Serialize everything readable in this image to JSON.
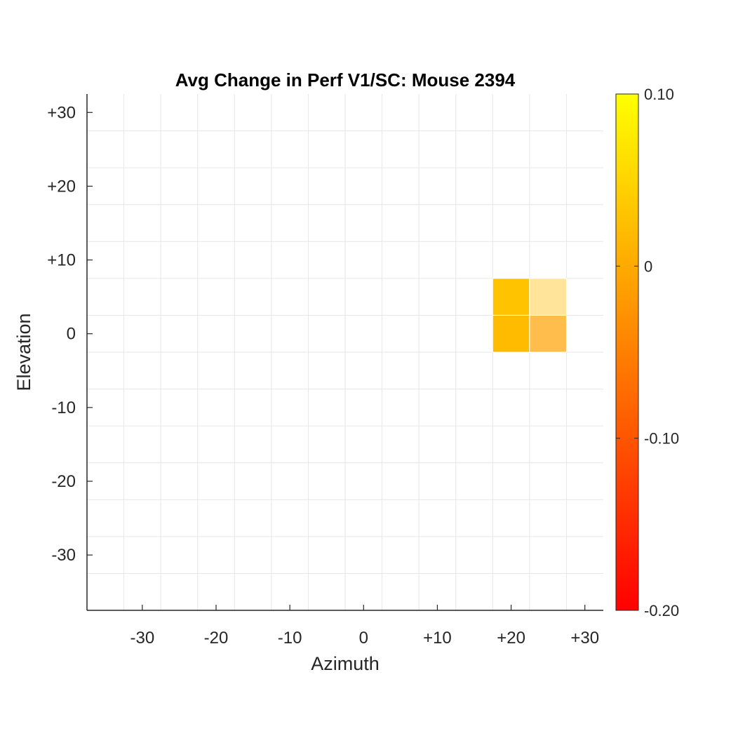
{
  "chart_data": {
    "type": "heatmap",
    "title": "Avg Change in Perf V1/SC: Mouse 2394",
    "xlabel": "Azimuth",
    "ylabel": "Elevation",
    "xlim": [
      -37.5,
      32.5
    ],
    "ylim": [
      -37.5,
      32.5
    ],
    "x_ticks": [
      -30,
      -20,
      -10,
      0,
      10,
      20,
      30
    ],
    "x_tick_labels": [
      "-30",
      "-20",
      "-10",
      "0",
      "+10",
      "+20",
      "+30"
    ],
    "y_ticks": [
      30,
      20,
      10,
      0,
      -10,
      -20,
      -30
    ],
    "y_tick_labels": [
      "+30",
      "+20",
      "+10",
      "0",
      "-10",
      "-20",
      "-30"
    ],
    "cell_size": 5,
    "grid": true,
    "cells": [
      {
        "azimuth": 20,
        "elevation": 5,
        "value": 0.03
      },
      {
        "azimuth": 25,
        "elevation": 5,
        "value": 0.02,
        "alpha": 0.4
      },
      {
        "azimuth": 20,
        "elevation": 0,
        "value": 0.02
      },
      {
        "azimuth": 25,
        "elevation": 0,
        "value": -0.01,
        "alpha": 0.7
      }
    ],
    "colorbar": {
      "colormap": "autumn",
      "range": [
        -0.2,
        0.1
      ],
      "ticks": [
        0.1,
        0,
        -0.1,
        -0.2
      ],
      "tick_labels": [
        "0.10",
        "0",
        "-0.10",
        "-0.20"
      ],
      "color_low": "#ff0000",
      "color_high": "#ffff00"
    }
  }
}
